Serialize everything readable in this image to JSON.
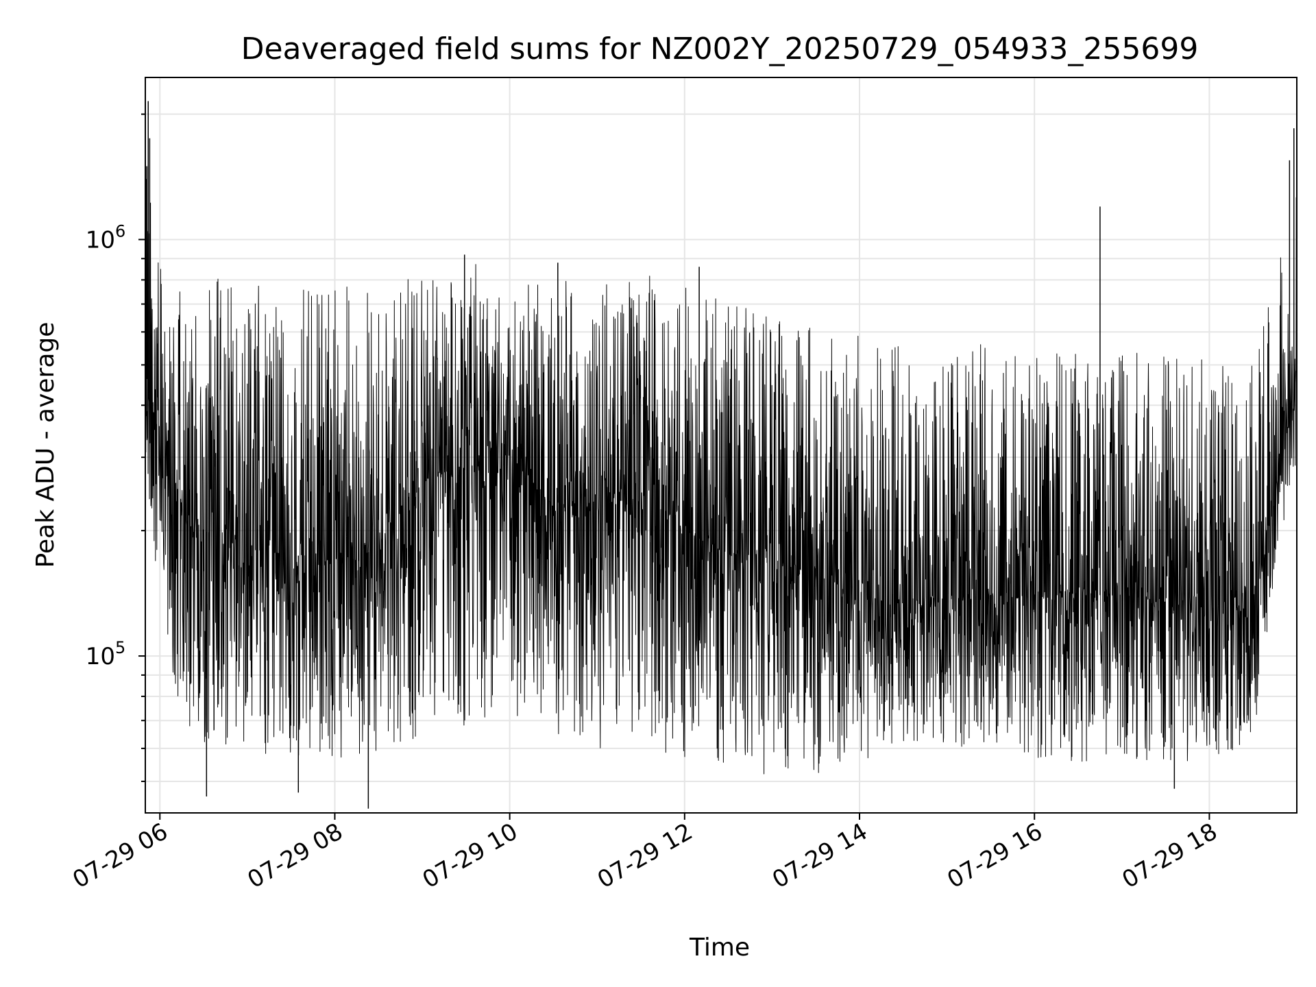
{
  "chart_data": {
    "type": "line",
    "title": "Deaveraged field sums for NZ002Y_20250729_054933_255699",
    "xlabel": "Time",
    "ylabel": "Peak ADU - average",
    "yscale": "log",
    "grid": true,
    "legend": "none",
    "line_color": "#000000",
    "xlim": [
      "2025-07-29 05:50",
      "2025-07-29 19:00"
    ],
    "ylim": [
      42000,
      2450000
    ],
    "x_ticks": [
      {
        "value": "2025-07-29 06:00",
        "label": "07-29 06"
      },
      {
        "value": "2025-07-29 08:00",
        "label": "07-29 08"
      },
      {
        "value": "2025-07-29 10:00",
        "label": "07-29 10"
      },
      {
        "value": "2025-07-29 12:00",
        "label": "07-29 12"
      },
      {
        "value": "2025-07-29 14:00",
        "label": "07-29 14"
      },
      {
        "value": "2025-07-29 16:00",
        "label": "07-29 16"
      },
      {
        "value": "2025-07-29 18:00",
        "label": "07-29 18"
      }
    ],
    "y_ticks": [
      {
        "value": 100000,
        "base": "10",
        "exp": "5"
      },
      {
        "value": 1000000,
        "base": "10",
        "exp": "6"
      }
    ],
    "series": [
      {
        "x": [
          "2025-07-29 05:50",
          "2025-07-29 06:00",
          "2025-07-29 06:15",
          "2025-07-29 06:30",
          "2025-07-29 06:45",
          "2025-07-29 07:00",
          "2025-07-29 07:30",
          "2025-07-29 08:00",
          "2025-07-29 08:30",
          "2025-07-29 09:00",
          "2025-07-29 09:30",
          "2025-07-29 10:00",
          "2025-07-29 10:30",
          "2025-07-29 11:00",
          "2025-07-29 11:30",
          "2025-07-29 12:00",
          "2025-07-29 12:30",
          "2025-07-29 13:00",
          "2025-07-29 13:30",
          "2025-07-29 14:00",
          "2025-07-29 14:30",
          "2025-07-29 15:00",
          "2025-07-29 15:30",
          "2025-07-29 16:00",
          "2025-07-29 16:30",
          "2025-07-29 17:00",
          "2025-07-29 17:30",
          "2025-07-29 18:00",
          "2025-07-29 18:30",
          "2025-07-29 18:45",
          "2025-07-29 19:00"
        ],
        "median": [
          480000,
          330000,
          230000,
          200000,
          190000,
          180000,
          175000,
          170000,
          180000,
          260000,
          280000,
          265000,
          235000,
          220000,
          250000,
          200000,
          175000,
          170000,
          160000,
          150000,
          135000,
          135000,
          140000,
          140000,
          140000,
          140000,
          135000,
          130000,
          130000,
          250000,
          500000
        ],
        "low": [
          260000,
          130000,
          70000,
          62000,
          60000,
          58000,
          58000,
          56000,
          57000,
          65000,
          68000,
          68000,
          64000,
          60000,
          62000,
          56000,
          52000,
          52000,
          52000,
          56000,
          60000,
          60000,
          62000,
          55000,
          55000,
          56000,
          55000,
          56000,
          62000,
          160000,
          300000
        ],
        "high": [
          1450000,
          950000,
          760000,
          800000,
          810000,
          780000,
          780000,
          770000,
          800000,
          860000,
          880000,
          850000,
          830000,
          800000,
          830000,
          790000,
          700000,
          680000,
          650000,
          600000,
          580000,
          560000,
          560000,
          550000,
          540000,
          540000,
          540000,
          520000,
          520000,
          800000,
          1300000
        ],
        "spikes": [
          {
            "x": "2025-07-29 05:52",
            "y": 2150000
          },
          {
            "x": "2025-07-29 05:53",
            "y": 1750000
          },
          {
            "x": "2025-07-29 05:51",
            "y": 1500000
          },
          {
            "x": "2025-07-29 06:32",
            "y": 46000
          },
          {
            "x": "2025-07-29 07:35",
            "y": 47000
          },
          {
            "x": "2025-07-29 08:23",
            "y": 43000
          },
          {
            "x": "2025-07-29 09:29",
            "y": 920000
          },
          {
            "x": "2025-07-29 10:33",
            "y": 880000
          },
          {
            "x": "2025-07-29 12:10",
            "y": 860000
          },
          {
            "x": "2025-07-29 16:45",
            "y": 1200000
          },
          {
            "x": "2025-07-29 17:36",
            "y": 48000
          },
          {
            "x": "2025-07-29 18:58",
            "y": 1850000
          },
          {
            "x": "2025-07-29 18:55",
            "y": 1550000
          }
        ]
      }
    ]
  }
}
